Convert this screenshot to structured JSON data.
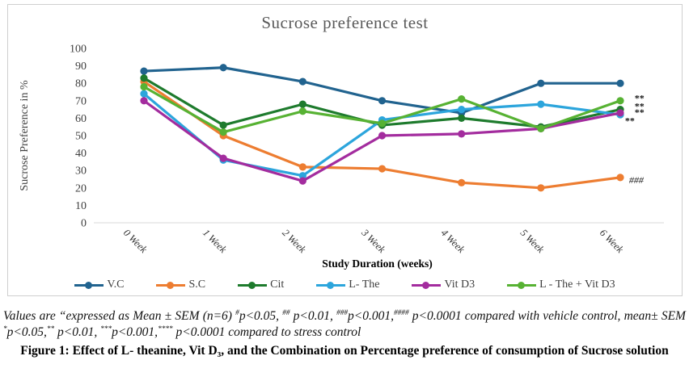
{
  "chart_data": {
    "type": "line",
    "title": "Sucrose preference test",
    "ylabel": "Sucrose Preference in %",
    "xlabel": "Study Duration (weeks)",
    "ylim": [
      0,
      100
    ],
    "yticks": [
      0,
      10,
      20,
      30,
      40,
      50,
      60,
      70,
      80,
      90,
      100
    ],
    "grid": false,
    "legend_position": "bottom",
    "categories": [
      "0 Week",
      "1 Week",
      "2 Week",
      "3 Week",
      "4 Week",
      "5 Week",
      "6 Week"
    ],
    "series": [
      {
        "name": "V.C",
        "color": "#21638F",
        "values": [
          87,
          89,
          81,
          70,
          63,
          80,
          80
        ]
      },
      {
        "name": "S.C",
        "color": "#ED7D31",
        "values": [
          81,
          50,
          32,
          31,
          23,
          20,
          26
        ]
      },
      {
        "name": "Cit",
        "color": "#1E7B2D",
        "values": [
          83,
          56,
          68,
          56,
          60,
          55,
          65
        ]
      },
      {
        "name": "L- The",
        "color": "#2CA5DC",
        "values": [
          74,
          36,
          27,
          59,
          65,
          68,
          62
        ]
      },
      {
        "name": "Vit D3",
        "color": "#A32C9E",
        "values": [
          70,
          37,
          24,
          50,
          51,
          54,
          63
        ]
      },
      {
        "name": "L - The + Vit D3",
        "color": "#57B233",
        "values": [
          78,
          52,
          64,
          57,
          71,
          54,
          70
        ]
      }
    ],
    "annotations": [
      {
        "text": "**",
        "x": 6.18,
        "y": 71.5
      },
      {
        "text": "**",
        "x": 6.18,
        "y": 67.0
      },
      {
        "text": "**",
        "x": 6.18,
        "y": 63.5
      },
      {
        "text": "**",
        "x": 6.06,
        "y": 58.5
      },
      {
        "text": "###",
        "x": 6.11,
        "y": 24.5
      }
    ]
  },
  "caption": {
    "stats_note": [
      {
        "t": "Values are “expressed as Mean ± SEM (n=6) "
      },
      {
        "sup": "#"
      },
      {
        "t": "p<0.05, "
      },
      {
        "sup": "##"
      },
      {
        "t": " p<0.01, "
      },
      {
        "sup": "###"
      },
      {
        "t": "p<0.001,"
      },
      {
        "sup": "####"
      },
      {
        "t": " p<0.0001 compared with vehicle control, mean± SEM "
      },
      {
        "sup": "*"
      },
      {
        "t": "p<0.05,"
      },
      {
        "sup": "**"
      },
      {
        "t": " p<0.01, "
      },
      {
        "sup": "***"
      },
      {
        "t": "p<0.001,"
      },
      {
        "sup": "****"
      },
      {
        "t": " p<0.0001 compared to stress control"
      }
    ],
    "figure_label": "Figure 1: Effect of L- theanine, Vit D₃, and the Combination on Percentage preference of consumption of Sucrose solution"
  }
}
